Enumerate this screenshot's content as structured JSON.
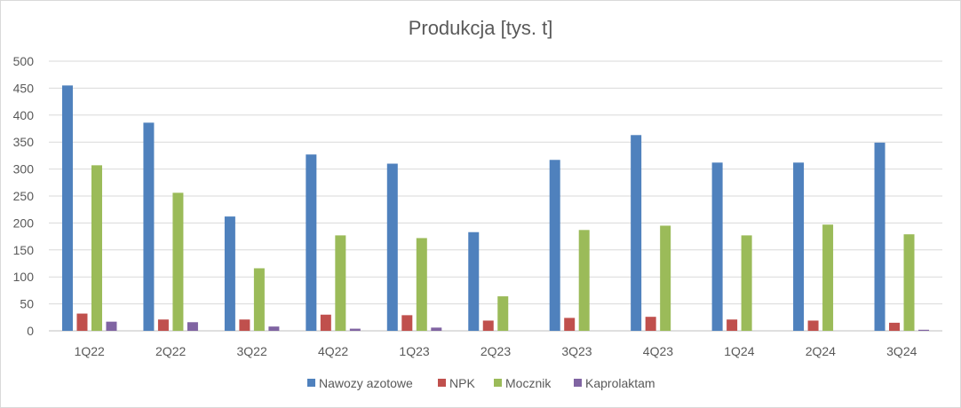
{
  "chart_data": {
    "type": "bar",
    "title": "Produkcja [tys. t]",
    "xlabel": "",
    "ylabel": "",
    "ylim": [
      0,
      500
    ],
    "yticks": [
      0,
      50,
      100,
      150,
      200,
      250,
      300,
      350,
      400,
      450,
      500
    ],
    "grid": true,
    "legend_position": "bottom",
    "categories": [
      "1Q22",
      "2Q22",
      "3Q22",
      "4Q22",
      "1Q23",
      "2Q23",
      "3Q23",
      "4Q23",
      "1Q24",
      "2Q24",
      "3Q24"
    ],
    "series": [
      {
        "name": "Nawozy azotowe",
        "color": "#4f81bd",
        "values": [
          455,
          386,
          212,
          327,
          310,
          183,
          317,
          363,
          312,
          312,
          349
        ]
      },
      {
        "name": "NPK",
        "color": "#c0504d",
        "values": [
          32,
          21,
          21,
          30,
          29,
          19,
          24,
          26,
          21,
          19,
          15
        ]
      },
      {
        "name": "Mocznik",
        "color": "#9bbb59",
        "values": [
          307,
          256,
          116,
          177,
          172,
          64,
          187,
          195,
          177,
          197,
          179
        ]
      },
      {
        "name": "Kaprolaktam",
        "color": "#8064a2",
        "values": [
          17,
          16,
          8,
          4,
          6,
          0,
          0,
          0,
          0,
          0,
          2
        ]
      }
    ]
  }
}
